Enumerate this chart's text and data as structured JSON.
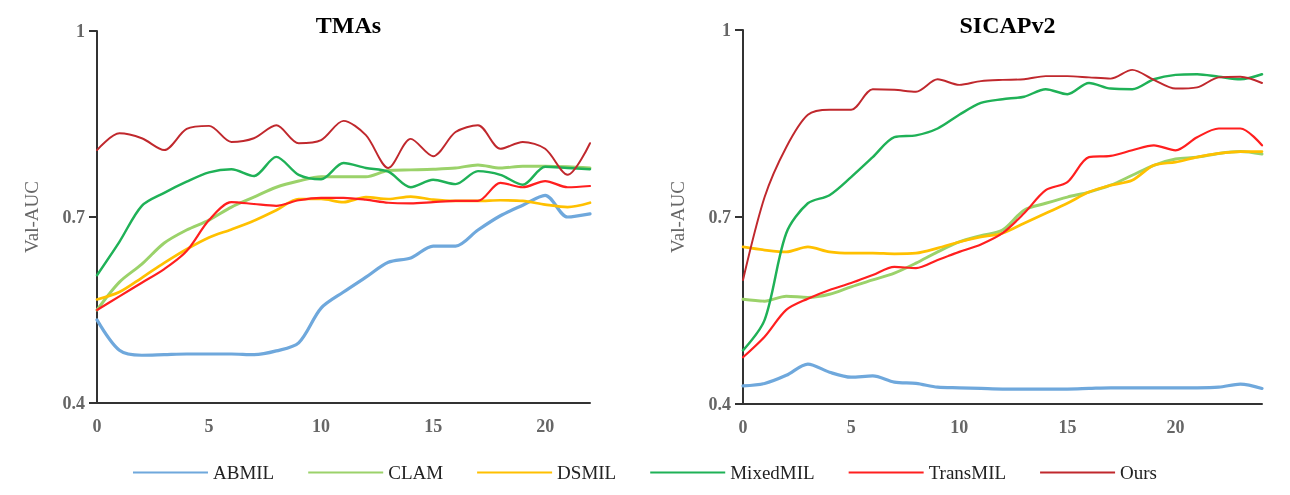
{
  "chart_data": [
    {
      "type": "line",
      "title": "TMAs",
      "ylabel": "Val-AUC",
      "x": [
        0,
        1,
        2,
        3,
        4,
        5,
        6,
        7,
        8,
        9,
        10,
        11,
        12,
        13,
        14,
        15,
        16,
        17,
        18,
        19,
        20,
        21,
        22
      ],
      "xlim": [
        0,
        22
      ],
      "xticks": [
        0,
        5,
        10,
        15,
        20
      ],
      "ylim": [
        0.4,
        1
      ],
      "yticks": [
        0.4,
        0.7,
        1
      ],
      "grid": false,
      "legend": "bottom",
      "marker": "none",
      "line_style": "solid",
      "series": [
        {
          "name": "ABMIL",
          "color": "#6fa8dc",
          "values": [
            0.534,
            0.485,
            0.477,
            0.478,
            0.479,
            0.479,
            0.479,
            0.478,
            0.484,
            0.497,
            0.553,
            0.579,
            0.603,
            0.627,
            0.634,
            0.653,
            0.653,
            0.679,
            0.702,
            0.719,
            0.735,
            0.7,
            0.705
          ]
        },
        {
          "name": "CLAM",
          "color": "#9bd26a",
          "values": [
            0.55,
            0.595,
            0.624,
            0.658,
            0.679,
            0.695,
            0.716,
            0.732,
            0.748,
            0.758,
            0.765,
            0.765,
            0.765,
            0.775,
            0.776,
            0.777,
            0.779,
            0.784,
            0.779,
            0.782,
            0.782,
            0.781,
            0.779
          ]
        },
        {
          "name": "DSMIL",
          "color": "#ffc000",
          "values": [
            0.567,
            0.579,
            0.602,
            0.626,
            0.648,
            0.667,
            0.68,
            0.694,
            0.711,
            0.729,
            0.729,
            0.724,
            0.732,
            0.729,
            0.733,
            0.728,
            0.726,
            0.726,
            0.727,
            0.726,
            0.72,
            0.716,
            0.723
          ]
        },
        {
          "name": "MixedMIL",
          "color": "#1fb157",
          "values": [
            0.606,
            0.66,
            0.718,
            0.739,
            0.757,
            0.772,
            0.777,
            0.766,
            0.797,
            0.768,
            0.761,
            0.787,
            0.779,
            0.773,
            0.748,
            0.76,
            0.753,
            0.774,
            0.768,
            0.752,
            0.781,
            0.779,
            0.777
          ]
        },
        {
          "name": "TransMIL",
          "color": "#ff1f1f",
          "values": [
            0.55,
            0.572,
            0.594,
            0.616,
            0.645,
            0.695,
            0.724,
            0.721,
            0.718,
            0.727,
            0.731,
            0.731,
            0.728,
            0.723,
            0.722,
            0.724,
            0.726,
            0.726,
            0.755,
            0.748,
            0.758,
            0.748,
            0.75
          ]
        },
        {
          "name": "Ours",
          "color": "#c0282d",
          "values": [
            0.808,
            0.835,
            0.827,
            0.808,
            0.842,
            0.847,
            0.821,
            0.827,
            0.848,
            0.819,
            0.824,
            0.855,
            0.832,
            0.779,
            0.826,
            0.798,
            0.837,
            0.848,
            0.81,
            0.821,
            0.81,
            0.768,
            0.819
          ]
        }
      ]
    },
    {
      "type": "line",
      "title": "SICAPv2",
      "ylabel": "Val-AUC",
      "x": [
        0,
        1,
        2,
        3,
        4,
        5,
        6,
        7,
        8,
        9,
        10,
        11,
        12,
        13,
        14,
        15,
        16,
        17,
        18,
        19,
        20,
        21,
        22,
        23,
        24
      ],
      "xlim": [
        0,
        24
      ],
      "xticks": [
        0,
        5,
        10,
        15,
        20
      ],
      "ylim": [
        0.4,
        1
      ],
      "yticks": [
        0.4,
        0.7,
        1
      ],
      "grid": false,
      "marker": "none",
      "line_style": "solid",
      "series": [
        {
          "color": "#6fa8dc",
          "values": [
            0.429,
            0.433,
            0.446,
            0.464,
            0.451,
            0.443,
            0.445,
            0.435,
            0.433,
            0.427,
            0.426,
            0.425,
            0.424,
            0.424,
            0.424,
            0.424,
            0.425,
            0.426,
            0.426,
            0.426,
            0.426,
            0.426,
            0.427,
            0.432,
            0.425
          ]
        },
        {
          "color": "#9bd26a",
          "values": [
            0.568,
            0.565,
            0.573,
            0.571,
            0.576,
            0.588,
            0.599,
            0.61,
            0.626,
            0.644,
            0.66,
            0.67,
            0.679,
            0.711,
            0.722,
            0.732,
            0.74,
            0.751,
            0.767,
            0.783,
            0.793,
            0.796,
            0.802,
            0.805,
            0.801
          ]
        },
        {
          "color": "#ffc000",
          "values": [
            0.652,
            0.647,
            0.644,
            0.652,
            0.644,
            0.642,
            0.642,
            0.641,
            0.642,
            0.65,
            0.66,
            0.668,
            0.674,
            0.69,
            0.706,
            0.722,
            0.74,
            0.751,
            0.759,
            0.783,
            0.788,
            0.796,
            0.802,
            0.805,
            0.805
          ]
        },
        {
          "color": "#1fb157",
          "values": [
            0.486,
            0.535,
            0.674,
            0.722,
            0.735,
            0.764,
            0.796,
            0.828,
            0.831,
            0.842,
            0.864,
            0.883,
            0.889,
            0.893,
            0.905,
            0.897,
            0.915,
            0.906,
            0.905,
            0.921,
            0.928,
            0.929,
            0.925,
            0.921,
            0.929
          ]
        },
        {
          "color": "#ff1f1f",
          "values": [
            0.475,
            0.508,
            0.551,
            0.569,
            0.583,
            0.594,
            0.607,
            0.62,
            0.618,
            0.631,
            0.644,
            0.656,
            0.674,
            0.706,
            0.743,
            0.756,
            0.796,
            0.798,
            0.807,
            0.815,
            0.807,
            0.828,
            0.842,
            0.842,
            0.815
          ]
        },
        {
          "color": "#c0282d",
          "values": [
            0.599,
            0.732,
            0.812,
            0.864,
            0.872,
            0.872,
            0.905,
            0.904,
            0.901,
            0.921,
            0.912,
            0.918,
            0.92,
            0.921,
            0.926,
            0.926,
            0.924,
            0.922,
            0.936,
            0.92,
            0.906,
            0.908,
            0.924,
            0.925,
            0.915
          ]
        }
      ]
    }
  ]
}
